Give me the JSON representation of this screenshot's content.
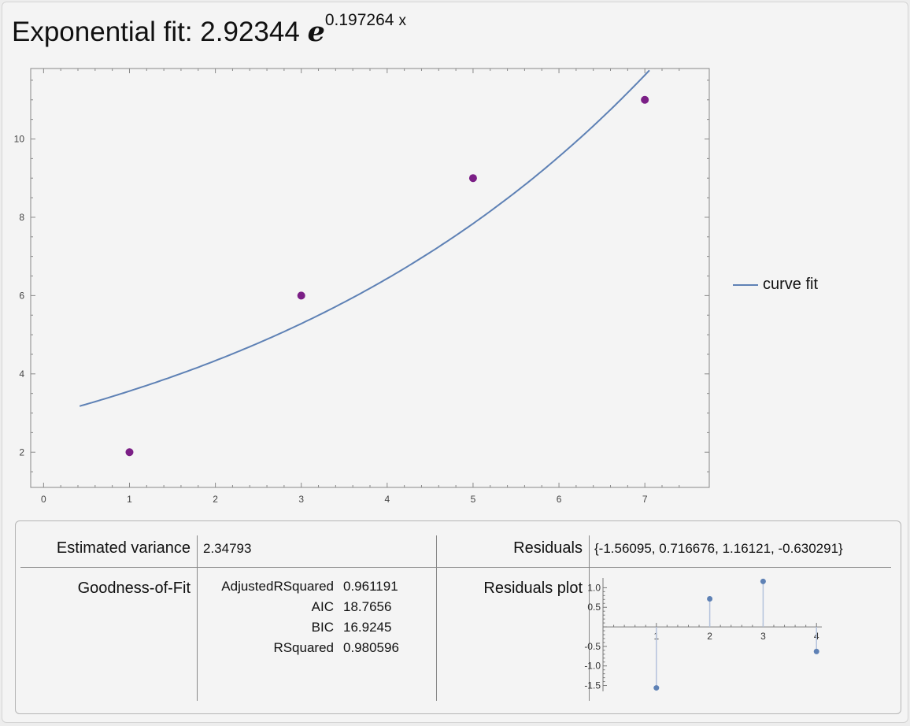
{
  "title": {
    "prefix": "Exponential fit: 2.92344 ",
    "base": "e",
    "exponent": "0.197264",
    "variable": "x"
  },
  "legend": {
    "label": "curve fit",
    "color": "#5e81b5"
  },
  "colors": {
    "points": "#7b1f86",
    "curve": "#5e81b5",
    "residuals": "#5e81b5"
  },
  "chart_data": [
    {
      "type": "scatter",
      "title": "",
      "xlabel": "",
      "ylabel": "",
      "xlim": [
        -0.15,
        7.75
      ],
      "ylim": [
        1.1,
        11.8
      ],
      "xticks": [
        0,
        1,
        2,
        3,
        4,
        5,
        6,
        7
      ],
      "yticks": [
        2,
        4,
        6,
        8,
        10
      ],
      "points": [
        {
          "x": 1,
          "y": 2
        },
        {
          "x": 3,
          "y": 6
        },
        {
          "x": 5,
          "y": 9
        },
        {
          "x": 7,
          "y": 11
        }
      ],
      "fit_curve": {
        "name": "curve fit",
        "a": 2.92344,
        "b": 0.197264,
        "x_range": [
          0.42,
          7.75
        ]
      },
      "legend_position": "right"
    },
    {
      "type": "scatter",
      "title": "Residuals plot",
      "xlim": [
        0.0,
        4.1
      ],
      "ylim": [
        -1.65,
        1.25
      ],
      "xticks": [
        1,
        2,
        3,
        4
      ],
      "yticks": [
        1.0,
        0.5,
        -0.5,
        -1.0,
        -1.5
      ],
      "points": [
        {
          "x": 1,
          "y": -1.56095
        },
        {
          "x": 2,
          "y": 0.716676
        },
        {
          "x": 3,
          "y": 1.16121
        },
        {
          "x": 4,
          "y": -0.630291
        }
      ]
    }
  ],
  "stats": {
    "estimated_variance_label": "Estimated variance",
    "estimated_variance_value": "2.34793",
    "goodness_label": "Goodness-of-Fit",
    "residuals_label": "Residuals",
    "residuals_value": "{-1.56095, 0.716676, 1.16121, -0.630291}",
    "residuals_plot_label": "Residuals plot",
    "fit_rows": [
      {
        "name": "AdjustedRSquared",
        "value": "0.961191"
      },
      {
        "name": "AIC",
        "value": "18.7656"
      },
      {
        "name": "BIC",
        "value": "16.9245"
      },
      {
        "name": "RSquared",
        "value": "0.980596"
      }
    ]
  }
}
